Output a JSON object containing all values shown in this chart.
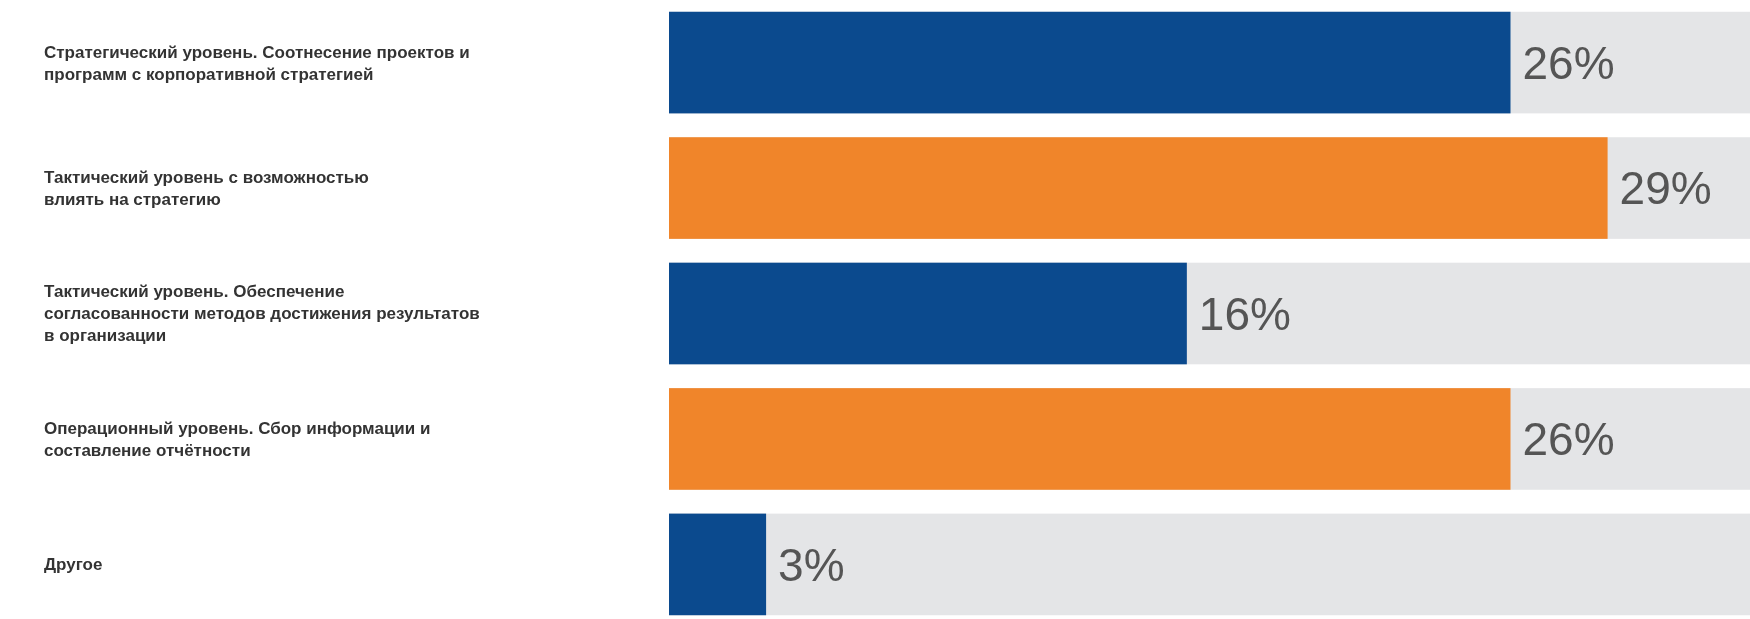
{
  "chart_data": {
    "type": "bar",
    "orientation": "horizontal",
    "categories": [
      "Стратегический уровень. Соотнесение проектов и\nпрограмм с корпоративной стратегией",
      "Тактический уровень с возможностью\nвлиять на стратегию",
      "Тактический уровень. Обеспечение\nсогласованности методов достижения результатов\nв организации",
      "Операционный уровень. Сбор информации и\nсоставление отчётности",
      "Другое"
    ],
    "values": [
      26,
      29,
      16,
      26,
      3
    ],
    "value_labels": [
      "26%",
      "29%",
      "16%",
      "26%",
      "3%"
    ],
    "colors": [
      "#0b4a8e",
      "#f0852a",
      "#0b4a8e",
      "#f0852a",
      "#0b4a8e"
    ],
    "xlim": [
      0,
      33.4
    ]
  }
}
